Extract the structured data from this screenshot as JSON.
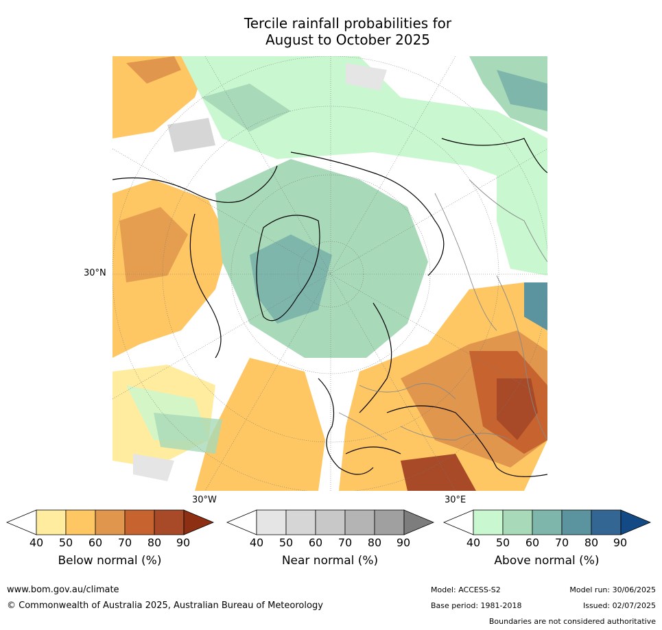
{
  "title": {
    "line1": "Tercile rainfall probabilities for",
    "line2": "August to October 2025"
  },
  "map": {
    "lat_label": "30°N",
    "lon_label_west": "30°W",
    "lon_label_east": "30°E",
    "projection": "north-polar-stereographic",
    "ocean_color": "#ffffff",
    "coastline_color": "#000000",
    "boundary_color": "#888888",
    "graticule_color": "#777777"
  },
  "colorbars": [
    {
      "title": "Below normal (%)",
      "ticks": [
        "40",
        "50",
        "60",
        "70",
        "80",
        "90"
      ],
      "colors": [
        "#ffffff",
        "#ffec9e",
        "#fec763",
        "#e0964c",
        "#c7632f",
        "#a84a27",
        "#8c2f12"
      ]
    },
    {
      "title": "Near normal (%)",
      "ticks": [
        "40",
        "50",
        "60",
        "70",
        "80",
        "90"
      ],
      "colors": [
        "#ffffff",
        "#e5e5e5",
        "#d6d6d6",
        "#c8c8c8",
        "#b4b4b4",
        "#a0a0a0",
        "#7d7d7d"
      ]
    },
    {
      "title": "Above normal (%)",
      "ticks": [
        "40",
        "50",
        "60",
        "70",
        "80",
        "90"
      ],
      "colors": [
        "#ffffff",
        "#c9f7cf",
        "#a8d9b8",
        "#7fb6ac",
        "#5b939e",
        "#346694",
        "#134a85"
      ]
    }
  ],
  "footer": {
    "website": "www.bom.gov.au/climate",
    "copyright": "© Commonwealth of Australia 2025, Australian Bureau of Meteorology",
    "model": "Model: ACCESS-S2",
    "base_period": "Base period: 1981-2018",
    "model_run": "Model run: 30/06/2025",
    "issued": "Issued: 02/07/2025",
    "disclaimer": "Boundaries are not considered authoritative"
  }
}
